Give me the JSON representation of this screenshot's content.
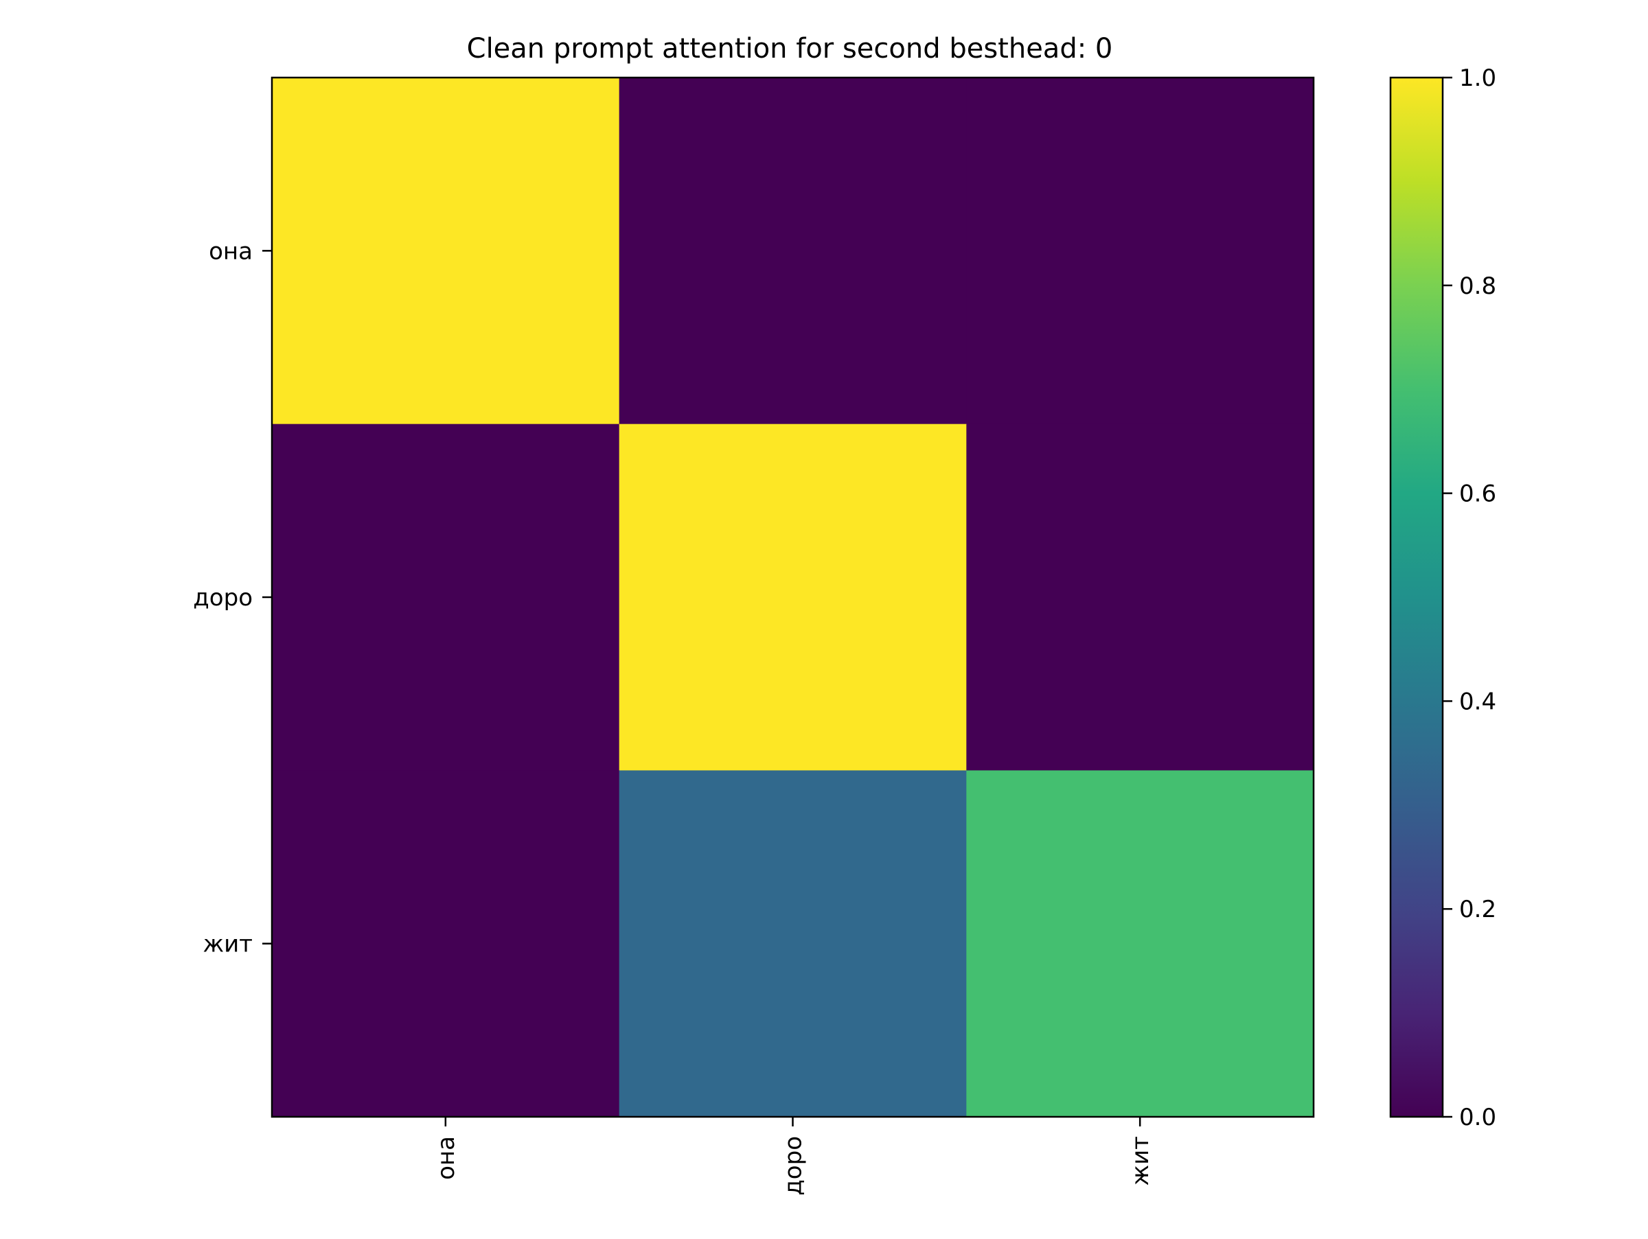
{
  "chart_data": {
    "type": "heatmap",
    "title": "Clean prompt attention for second besthead: 0",
    "xlabel": "",
    "ylabel": "",
    "x_labels": [
      "она",
      "доро",
      "жит"
    ],
    "y_labels": [
      "она",
      "доро",
      "жит"
    ],
    "values": [
      [
        1.0,
        0.0,
        0.0
      ],
      [
        0.0,
        1.0,
        0.0
      ],
      [
        0.0,
        0.34,
        0.7
      ]
    ],
    "colormap": "viridis",
    "colorbar": {
      "min": 0.0,
      "max": 1.0,
      "ticks": [
        "0.0",
        "0.2",
        "0.4",
        "0.6",
        "0.8",
        "1.0"
      ]
    },
    "grid": false
  }
}
